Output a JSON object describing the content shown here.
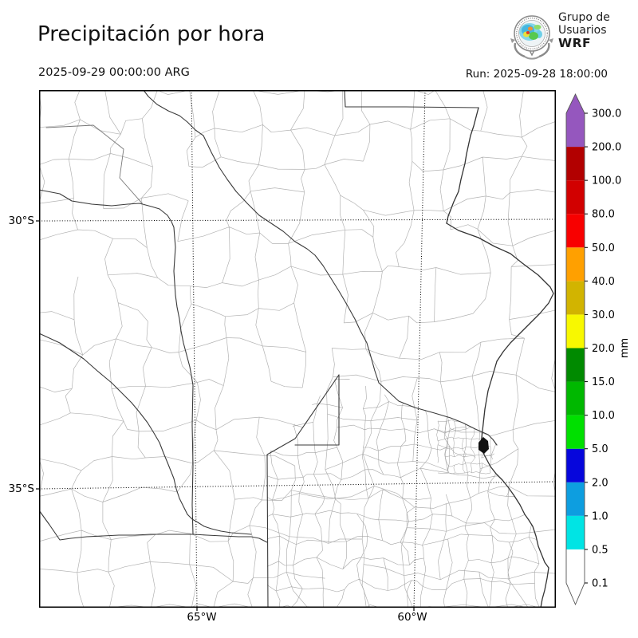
{
  "header": {
    "title": "Precipitación por hora",
    "valid_time": "2025-09-29 00:00:00 ARG",
    "run": "Run: 2025-09-28 18:00:00",
    "logo": {
      "line1": "Grupo de",
      "line2": "Usuarios",
      "line3": "WRF"
    }
  },
  "map": {
    "lat_ticks": [
      "30°S",
      "35°S"
    ],
    "lon_ticks": [
      "65°W",
      "60°W"
    ]
  },
  "colorbar": {
    "unit": "mm",
    "tick_labels": [
      "300.0",
      "200.0",
      "100.0",
      "80.0",
      "50.0",
      "40.0",
      "30.0",
      "20.0",
      "15.0",
      "10.0",
      "5.0",
      "2.0",
      "1.0",
      "0.5",
      "0.1"
    ],
    "levels_mm": [
      0.1,
      0.5,
      1.0,
      2.0,
      5.0,
      10.0,
      15.0,
      20.0,
      30.0,
      40.0,
      50.0,
      80.0,
      100.0,
      200.0,
      300.0
    ],
    "interval_colors_bottom_to_top": [
      "#ffffff",
      "#00e4e4",
      "#0d9ee0",
      "#0606dc",
      "#00e000",
      "#00b800",
      "#008a00",
      "#f8f800",
      "#d2b400",
      "#ffa000",
      "#f80000",
      "#d20000",
      "#b20000",
      "#9557be"
    ],
    "under_arrow_color": "#ffffff",
    "over_arrow_color": "#9557be"
  }
}
